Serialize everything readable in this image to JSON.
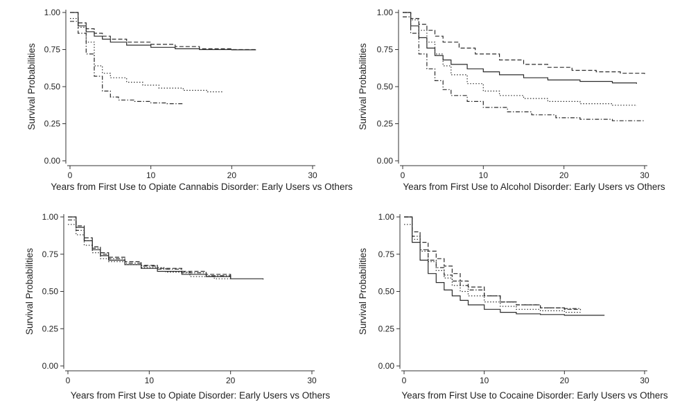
{
  "chart_data": [
    {
      "type": "line",
      "step": true,
      "xlabel": "Years from First Use to Opiate Cannabis Disorder: Early Users vs Others",
      "ylabel": "Survival Probabilities",
      "xlim": [
        0,
        30
      ],
      "ylim": [
        0,
        1
      ],
      "xticks": [
        "0",
        "10",
        "20",
        "30"
      ],
      "yticks": [
        "0.00",
        "0.25",
        "0.50",
        "0.75",
        "1.00"
      ],
      "grid": false,
      "legend": "none",
      "series": [
        {
          "style": "solid",
          "x": [
            0,
            1,
            2,
            3,
            4,
            5,
            7,
            10,
            13,
            16,
            20,
            23
          ],
          "y": [
            1.0,
            0.91,
            0.87,
            0.84,
            0.82,
            0.8,
            0.78,
            0.765,
            0.755,
            0.75,
            0.748,
            0.748
          ]
        },
        {
          "style": "dashed",
          "x": [
            0,
            1,
            2,
            3,
            4,
            5,
            7,
            10,
            13,
            16,
            20,
            23
          ],
          "y": [
            1.0,
            0.93,
            0.89,
            0.86,
            0.84,
            0.82,
            0.8,
            0.785,
            0.77,
            0.755,
            0.75,
            0.75
          ]
        },
        {
          "style": "dotted",
          "x": [
            0,
            1,
            2,
            3,
            4,
            5,
            7,
            9,
            11,
            14,
            17,
            19
          ],
          "y": [
            0.96,
            0.9,
            0.8,
            0.64,
            0.59,
            0.56,
            0.53,
            0.51,
            0.49,
            0.475,
            0.465,
            0.465
          ]
        },
        {
          "style": "dash-dot",
          "x": [
            0,
            1,
            2,
            3,
            4,
            5,
            6,
            8,
            10,
            12,
            14
          ],
          "y": [
            0.94,
            0.86,
            0.72,
            0.57,
            0.47,
            0.43,
            0.41,
            0.4,
            0.39,
            0.385,
            0.385
          ]
        }
      ]
    },
    {
      "type": "line",
      "step": true,
      "xlabel": "Years from First Use to Alcohol Disorder: Early Users vs Others",
      "ylabel": "Survival Probabilities",
      "xlim": [
        0,
        30
      ],
      "ylim": [
        0,
        1
      ],
      "xticks": [
        "0",
        "10",
        "20",
        "30"
      ],
      "yticks": [
        "0.00",
        "0.25",
        "0.50",
        "0.75",
        "1.00"
      ],
      "grid": false,
      "legend": "none",
      "series": [
        {
          "style": "solid",
          "x": [
            0,
            1,
            2,
            3,
            4,
            5,
            6,
            8,
            10,
            12,
            15,
            18,
            22,
            26,
            29
          ],
          "y": [
            1.0,
            0.91,
            0.83,
            0.76,
            0.71,
            0.68,
            0.65,
            0.62,
            0.6,
            0.58,
            0.56,
            0.545,
            0.535,
            0.525,
            0.52
          ]
        },
        {
          "style": "dashed",
          "x": [
            0,
            1,
            2,
            3,
            4,
            5,
            7,
            9,
            12,
            15,
            18,
            21,
            24,
            27,
            30
          ],
          "y": [
            1.0,
            0.96,
            0.92,
            0.88,
            0.84,
            0.8,
            0.76,
            0.72,
            0.68,
            0.65,
            0.63,
            0.61,
            0.6,
            0.59,
            0.585
          ]
        },
        {
          "style": "dotted",
          "x": [
            0,
            1,
            2,
            3,
            4,
            5,
            6,
            8,
            10,
            12,
            15,
            18,
            22,
            26,
            29
          ],
          "y": [
            1.0,
            0.95,
            0.88,
            0.8,
            0.72,
            0.64,
            0.58,
            0.52,
            0.47,
            0.44,
            0.42,
            0.4,
            0.385,
            0.375,
            0.37
          ]
        },
        {
          "style": "dash-dot",
          "x": [
            0,
            1,
            2,
            3,
            4,
            5,
            6,
            8,
            10,
            13,
            16,
            19,
            22,
            26,
            30
          ],
          "y": [
            0.97,
            0.86,
            0.72,
            0.62,
            0.54,
            0.48,
            0.44,
            0.4,
            0.36,
            0.33,
            0.31,
            0.29,
            0.28,
            0.27,
            0.265
          ]
        }
      ]
    },
    {
      "type": "line",
      "step": true,
      "xlabel": "Years from First Use to Opiate Disorder: Early Users vs Others",
      "ylabel": "Survival Probabilities",
      "xlim": [
        0,
        30
      ],
      "ylim": [
        0,
        1
      ],
      "xticks": [
        "0",
        "10",
        "20",
        "30"
      ],
      "yticks": [
        "0.00",
        "0.25",
        "0.50",
        "0.75",
        "1.00"
      ],
      "grid": false,
      "legend": "none",
      "series": [
        {
          "style": "solid",
          "x": [
            0,
            1,
            2,
            3,
            4,
            5,
            7,
            9,
            11,
            14,
            17,
            20,
            24
          ],
          "y": [
            1.0,
            0.93,
            0.84,
            0.78,
            0.74,
            0.71,
            0.68,
            0.655,
            0.635,
            0.615,
            0.6,
            0.585,
            0.58
          ]
        },
        {
          "style": "dashed",
          "x": [
            0,
            1,
            2,
            3,
            4,
            5,
            7,
            9,
            11,
            14,
            17,
            20
          ],
          "y": [
            1.0,
            0.94,
            0.86,
            0.8,
            0.76,
            0.73,
            0.7,
            0.675,
            0.655,
            0.635,
            0.615,
            0.595
          ]
        },
        {
          "style": "dotted",
          "x": [
            0,
            1,
            2,
            3,
            4,
            5,
            7,
            9,
            12,
            15,
            18,
            20
          ],
          "y": [
            0.95,
            0.88,
            0.81,
            0.76,
            0.72,
            0.7,
            0.68,
            0.66,
            0.63,
            0.6,
            0.585,
            0.58
          ]
        },
        {
          "style": "dash-dot",
          "x": [
            0,
            1,
            2,
            3,
            4,
            5,
            7,
            9,
            11,
            14,
            17,
            20
          ],
          "y": [
            0.98,
            0.91,
            0.84,
            0.79,
            0.75,
            0.72,
            0.69,
            0.67,
            0.65,
            0.625,
            0.605,
            0.59
          ]
        }
      ]
    },
    {
      "type": "line",
      "step": true,
      "xlabel": "Years from First Use to Cocaine Disorder: Early Users vs Others",
      "ylabel": "Survival Probabilities",
      "xlim": [
        0,
        30
      ],
      "ylim": [
        0,
        1
      ],
      "xticks": [
        "0",
        "10",
        "20",
        "30"
      ],
      "yticks": [
        "0.00",
        "0.25",
        "0.50",
        "0.75",
        "1.00"
      ],
      "grid": false,
      "legend": "none",
      "series": [
        {
          "style": "solid",
          "x": [
            0,
            1,
            2,
            3,
            4,
            5,
            6,
            7,
            8,
            10,
            12,
            14,
            17,
            20,
            25
          ],
          "y": [
            1.0,
            0.83,
            0.71,
            0.62,
            0.56,
            0.51,
            0.47,
            0.44,
            0.41,
            0.38,
            0.36,
            0.35,
            0.345,
            0.34,
            0.34
          ]
        },
        {
          "style": "dashed",
          "x": [
            0,
            1,
            2,
            3,
            4,
            5,
            6,
            7,
            8,
            10,
            12,
            14,
            17,
            20,
            22
          ],
          "y": [
            1.0,
            0.9,
            0.83,
            0.77,
            0.72,
            0.67,
            0.62,
            0.57,
            0.53,
            0.47,
            0.43,
            0.41,
            0.39,
            0.38,
            0.375
          ]
        },
        {
          "style": "dotted",
          "x": [
            0,
            1,
            2,
            3,
            4,
            5,
            6,
            7,
            8,
            10,
            12,
            14,
            17,
            20,
            22
          ],
          "y": [
            0.95,
            0.85,
            0.77,
            0.7,
            0.64,
            0.59,
            0.54,
            0.5,
            0.47,
            0.43,
            0.4,
            0.38,
            0.37,
            0.36,
            0.36
          ]
        },
        {
          "style": "dash-dot",
          "x": [
            0,
            1,
            2,
            3,
            4,
            5,
            6,
            7,
            8,
            10,
            12,
            14,
            17,
            20,
            22
          ],
          "y": [
            1.0,
            0.87,
            0.78,
            0.71,
            0.66,
            0.61,
            0.57,
            0.54,
            0.51,
            0.47,
            0.43,
            0.41,
            0.39,
            0.385,
            0.38
          ]
        }
      ]
    }
  ]
}
